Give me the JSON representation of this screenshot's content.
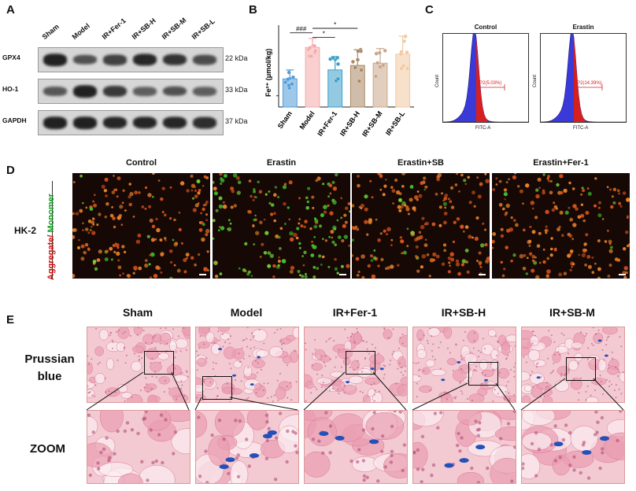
{
  "panels": {
    "a": "A",
    "b": "B",
    "c": "C",
    "d": "D",
    "e": "E"
  },
  "western_blot": {
    "lanes": [
      "Sham",
      "Model",
      "IR+Fer-1",
      "IR+SB-H",
      "IR+SB-M",
      "IR+SB-L"
    ],
    "rows": [
      {
        "protein": "GPX4",
        "kda": "22 kDa",
        "intensity": [
          0.95,
          0.55,
          0.7,
          0.9,
          0.8,
          0.6
        ]
      },
      {
        "protein": "HO-1",
        "kda": "33 kDa",
        "intensity": [
          0.5,
          0.95,
          0.75,
          0.45,
          0.55,
          0.45
        ]
      },
      {
        "protein": "GAPDH",
        "kda": "37 kDa",
        "intensity": [
          0.95,
          0.95,
          0.9,
          0.92,
          0.9,
          0.85
        ]
      }
    ]
  },
  "chart_data": {
    "type": "bar",
    "categories": [
      "Sham",
      "Model",
      "IR+Fer-1",
      "IR+SB-H",
      "IR+SB-M",
      "IR+SB-L"
    ],
    "values": [
      25,
      53,
      33,
      37,
      39,
      47
    ],
    "errors": [
      8,
      8,
      12,
      14,
      13,
      16
    ],
    "colors": [
      "#4f9bd8",
      "#f4a8a8",
      "#3a9ec9",
      "#a98763",
      "#c9a68a",
      "#f2c8a0"
    ],
    "ylabel": "Fe²⁺ (μmol/kg)",
    "ylim": [
      0,
      70
    ],
    "significance": [
      {
        "from": 0,
        "to": 1,
        "label": "###"
      },
      {
        "from": 1,
        "to": 2,
        "label": "*"
      },
      {
        "from": 1,
        "to": 3,
        "label": "*"
      }
    ]
  },
  "flow": {
    "plots": [
      {
        "title": "Control",
        "gate": "P2(5.03%)",
        "xlabel": "FITC-A",
        "ylabel": "Count"
      },
      {
        "title": "Erastin",
        "gate": "P2(14.39%)",
        "xlabel": "FITC-A",
        "ylabel": "Count"
      }
    ]
  },
  "fluorescence": {
    "titles": [
      "Control",
      "Erastin",
      "Erastin+SB",
      "Erastin+Fer-1"
    ],
    "row_label": "HK-2",
    "ylabel_red": "Aggregate/",
    "ylabel_green": " Monomer",
    "green_fraction": [
      0.08,
      0.55,
      0.12,
      0.1
    ]
  },
  "histology": {
    "titles": [
      "Sham",
      "Model",
      "IR+Fer-1",
      "IR+SB-H",
      "IR+SB-M"
    ],
    "row1": "Prussian\nblue",
    "row1a": "Prussian",
    "row1b": "blue",
    "row2": "ZOOM"
  }
}
